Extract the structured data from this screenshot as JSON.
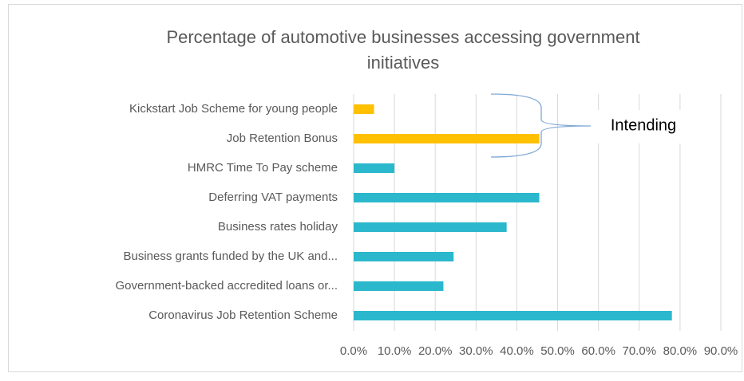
{
  "chart_data": {
    "type": "hbar",
    "title": [
      "Percentage of automotive businesses accessing government",
      "initiatives"
    ],
    "categories": [
      "Kickstart Job Scheme for young people",
      "Job Retention Bonus",
      "HMRC Time To Pay scheme",
      "Deferring VAT payments",
      "Business rates holiday",
      "Business grants funded by the UK and...",
      "Government-backed accredited loans or...",
      "Coronavirus Job Retention Scheme"
    ],
    "values": [
      5,
      45.5,
      10,
      45.5,
      37.5,
      24.5,
      22,
      78
    ],
    "colors": [
      "#ffc000",
      "#ffc000",
      "#2bb8cc",
      "#2bb8cc",
      "#2bb8cc",
      "#2bb8cc",
      "#2bb8cc",
      "#2bb8cc"
    ],
    "xlim": [
      0,
      90
    ],
    "xticks": [
      {
        "value": 0,
        "label": "0.0%"
      },
      {
        "value": 10,
        "label": "10.0%"
      },
      {
        "value": 20,
        "label": "20.0%"
      },
      {
        "value": 30,
        "label": "30.0%"
      },
      {
        "value": 40,
        "label": "40.0%"
      },
      {
        "value": 50,
        "label": "50.0%"
      },
      {
        "value": 60,
        "label": "60.0%"
      },
      {
        "value": 70,
        "label": "70.0%"
      },
      {
        "value": 80,
        "label": "80.0%"
      },
      {
        "value": 90,
        "label": "90.0%"
      }
    ],
    "grid": true,
    "annotation": "Intending"
  }
}
